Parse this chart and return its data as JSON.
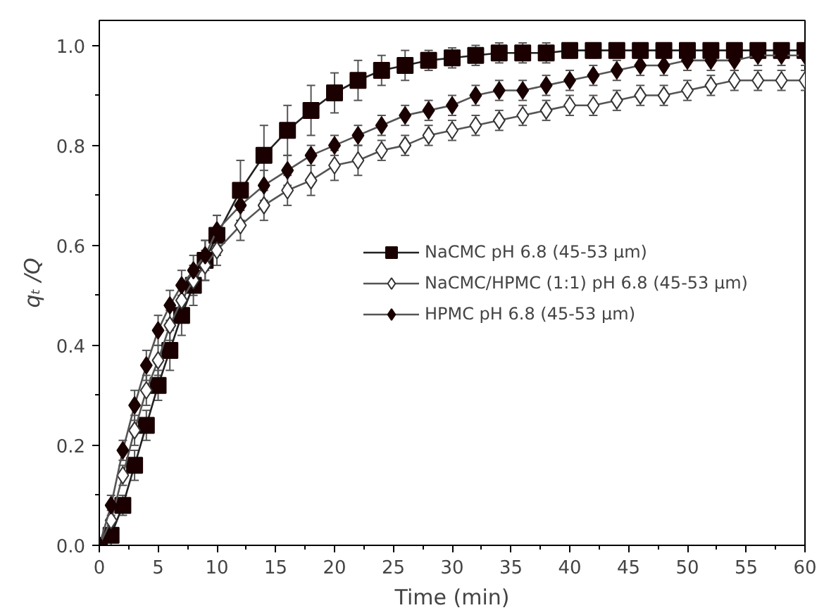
{
  "chart_data": {
    "type": "line",
    "xlabel": "Time (min)",
    "ylabel": "qₜ /Q",
    "x": [
      0,
      1,
      2,
      3,
      4,
      5,
      6,
      7,
      8,
      9,
      10,
      12,
      14,
      16,
      18,
      20,
      22,
      24,
      26,
      28,
      30,
      32,
      34,
      36,
      38,
      40,
      42,
      44,
      46,
      48,
      50,
      52,
      54,
      56,
      58,
      60
    ],
    "series": [
      {
        "name": "NaCMC pH 6.8 (45-53 µm)",
        "color": "#1a0000",
        "marker": "square",
        "values": [
          0.0,
          0.02,
          0.08,
          0.16,
          0.24,
          0.32,
          0.39,
          0.46,
          0.52,
          0.57,
          0.62,
          0.71,
          0.78,
          0.83,
          0.87,
          0.905,
          0.93,
          0.95,
          0.96,
          0.97,
          0.975,
          0.98,
          0.985,
          0.985,
          0.985,
          0.99,
          0.99,
          0.99,
          0.99,
          0.99,
          0.99,
          0.99,
          0.99,
          0.99,
          0.99,
          0.99
        ],
        "errors": [
          0.01,
          0.02,
          0.02,
          0.03,
          0.03,
          0.03,
          0.04,
          0.04,
          0.04,
          0.04,
          0.04,
          0.06,
          0.06,
          0.05,
          0.05,
          0.04,
          0.04,
          0.03,
          0.03,
          0.02,
          0.02,
          0.02,
          0.02,
          0.02,
          0.02,
          0.015,
          0.015,
          0.015,
          0.015,
          0.015,
          0.015,
          0.015,
          0.015,
          0.015,
          0.015,
          0.015
        ]
      },
      {
        "name": "NaCMC/HPMC (1:1) pH 6.8 (45-53 µm)",
        "color": "#ffffff",
        "marker": "diamond",
        "values": [
          0.0,
          0.05,
          0.14,
          0.23,
          0.31,
          0.37,
          0.44,
          0.49,
          0.53,
          0.56,
          0.59,
          0.64,
          0.68,
          0.71,
          0.73,
          0.76,
          0.77,
          0.79,
          0.8,
          0.82,
          0.83,
          0.84,
          0.85,
          0.86,
          0.87,
          0.88,
          0.88,
          0.89,
          0.9,
          0.9,
          0.91,
          0.92,
          0.93,
          0.93,
          0.93,
          0.93
        ],
        "errors": [
          0.01,
          0.02,
          0.02,
          0.03,
          0.03,
          0.03,
          0.03,
          0.03,
          0.03,
          0.03,
          0.03,
          0.03,
          0.03,
          0.03,
          0.03,
          0.03,
          0.03,
          0.02,
          0.02,
          0.02,
          0.02,
          0.02,
          0.02,
          0.02,
          0.02,
          0.02,
          0.02,
          0.02,
          0.02,
          0.02,
          0.02,
          0.02,
          0.02,
          0.02,
          0.02,
          0.02
        ]
      },
      {
        "name": "HPMC pH 6.8 (45-53 µm)",
        "color": "#1a0000",
        "marker": "diamond",
        "values": [
          0.0,
          0.08,
          0.19,
          0.28,
          0.36,
          0.43,
          0.48,
          0.52,
          0.55,
          0.58,
          0.63,
          0.68,
          0.72,
          0.75,
          0.78,
          0.8,
          0.82,
          0.84,
          0.86,
          0.87,
          0.88,
          0.9,
          0.91,
          0.91,
          0.92,
          0.93,
          0.94,
          0.95,
          0.96,
          0.96,
          0.97,
          0.97,
          0.97,
          0.98,
          0.98,
          0.98
        ],
        "errors": [
          0.01,
          0.02,
          0.02,
          0.03,
          0.03,
          0.03,
          0.03,
          0.03,
          0.03,
          0.03,
          0.03,
          0.03,
          0.03,
          0.03,
          0.02,
          0.02,
          0.02,
          0.02,
          0.02,
          0.02,
          0.02,
          0.02,
          0.02,
          0.02,
          0.02,
          0.02,
          0.02,
          0.02,
          0.02,
          0.02,
          0.02,
          0.02,
          0.02,
          0.02,
          0.02,
          0.02
        ]
      }
    ],
    "xlim": [
      0,
      60
    ],
    "ylim": [
      0,
      1.05
    ],
    "xticks": [
      0,
      5,
      10,
      15,
      20,
      25,
      30,
      35,
      40,
      45,
      50,
      55,
      60
    ],
    "yticks": [
      {
        "value": 0,
        "label": "0.0"
      },
      0.2,
      0.4,
      0.6,
      0.8,
      {
        "value": 1,
        "label": "1.0"
      }
    ],
    "legend": "right",
    "grid": false
  }
}
